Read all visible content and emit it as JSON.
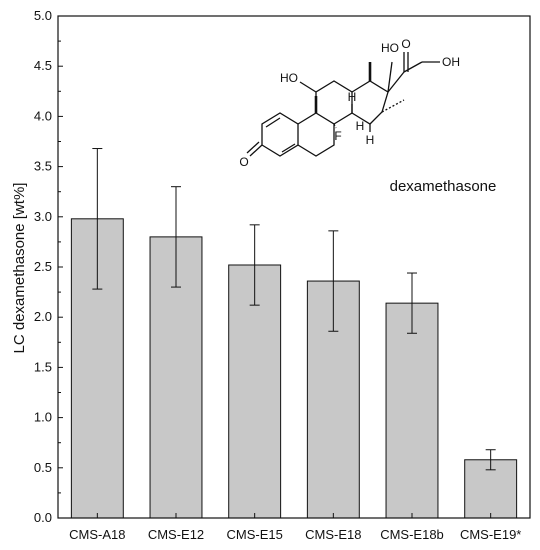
{
  "chart_data": {
    "type": "bar",
    "categories": [
      "CMS-A18",
      "CMS-E12",
      "CMS-E15",
      "CMS-E18",
      "CMS-E18b",
      "CMS-E19*"
    ],
    "values": [
      2.98,
      2.8,
      2.52,
      2.36,
      2.14,
      0.58
    ],
    "errors": [
      0.7,
      0.5,
      0.4,
      0.5,
      0.3,
      0.1
    ],
    "ylabel": "LC dexamethasone [wt%]",
    "xlabel": "",
    "ylim": [
      0,
      5.0
    ],
    "yticks": [
      "0.0",
      "0.5",
      "1.0",
      "1.5",
      "2.0",
      "2.5",
      "3.0",
      "3.5",
      "4.0",
      "4.5",
      "5.0"
    ],
    "bar_color": "#c8c8c8",
    "grid": false
  },
  "structure": {
    "name": "dexamethasone",
    "atoms": [
      "HO",
      "O",
      "OH",
      "HO",
      "H",
      "H",
      "H",
      "F",
      "O"
    ]
  }
}
